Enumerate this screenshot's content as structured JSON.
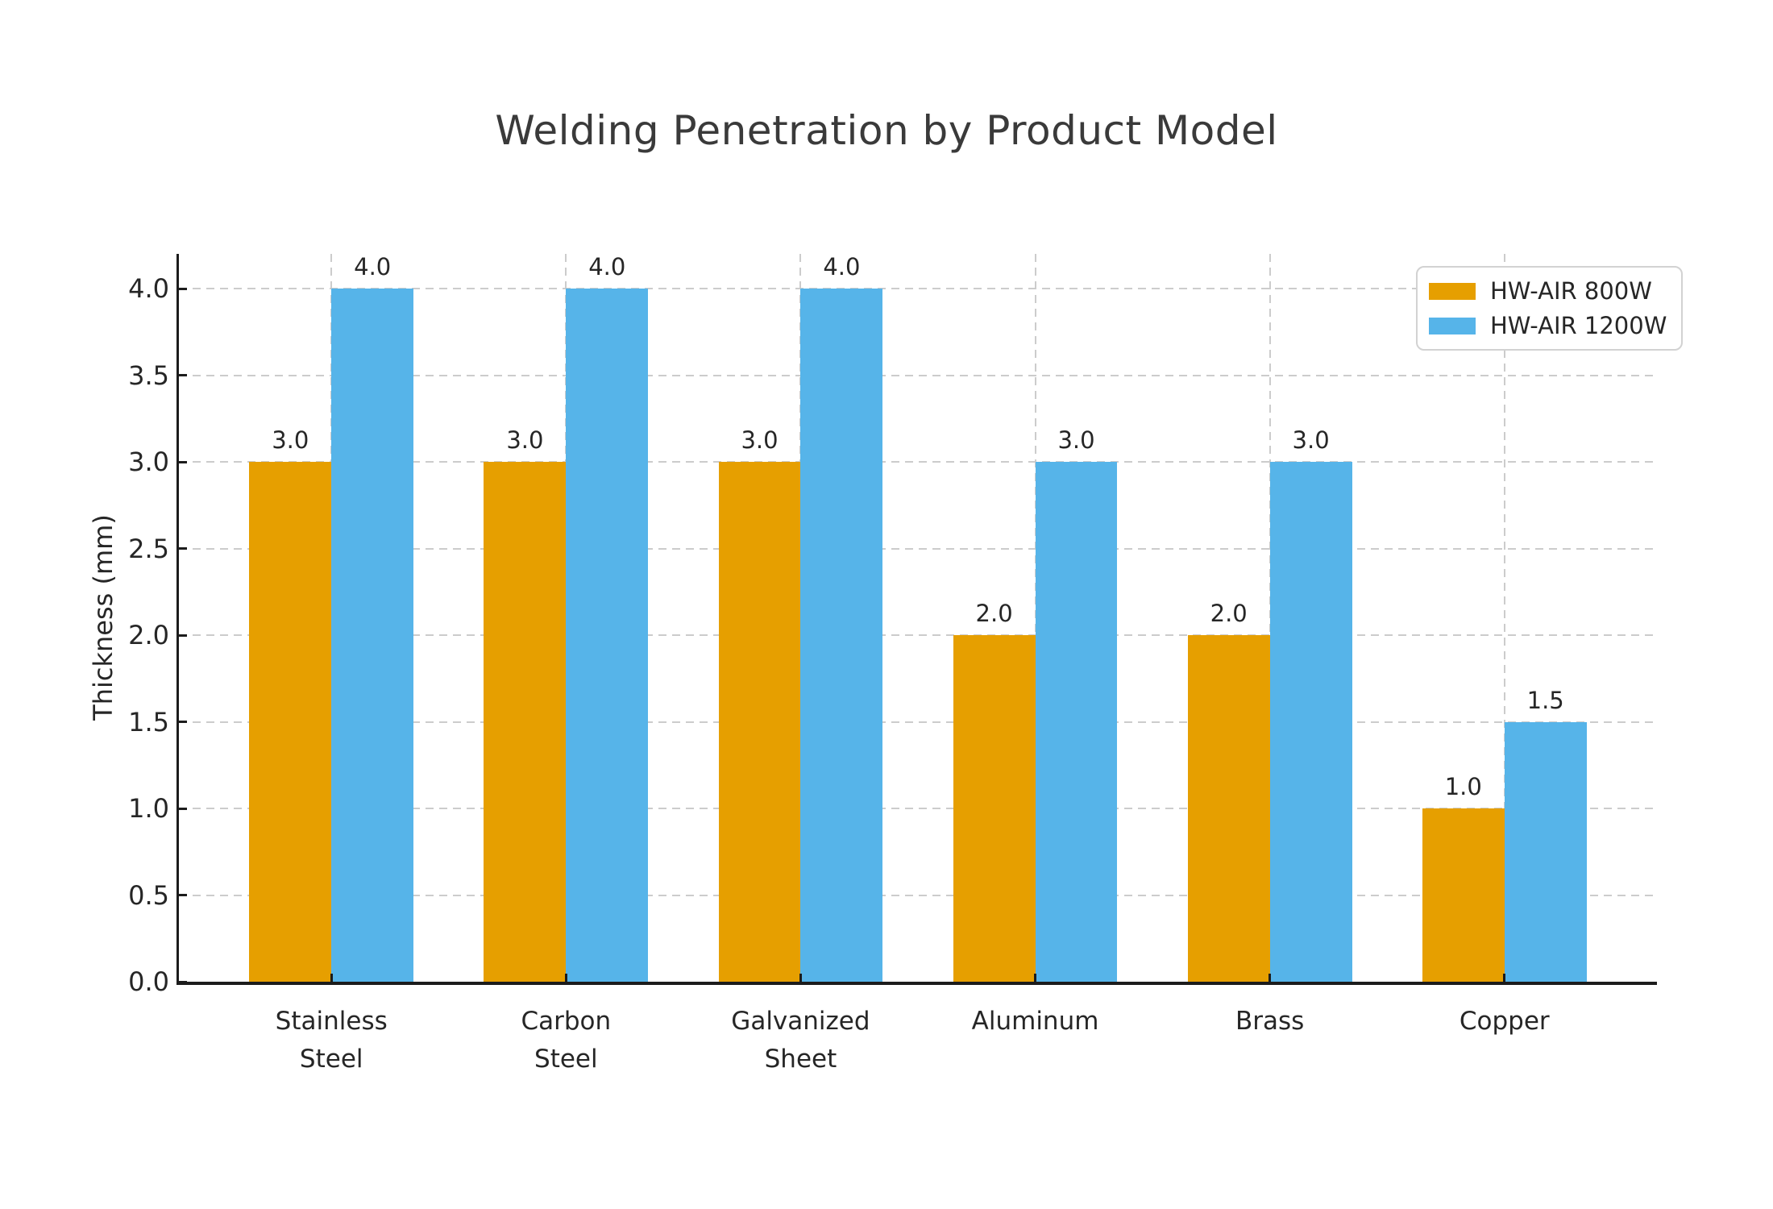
{
  "chart_data": {
    "type": "bar",
    "title": "Welding Penetration by Product Model",
    "ylabel": "Thickness (mm)",
    "xlabel": "",
    "categories": [
      "Stainless\nSteel",
      "Carbon\nSteel",
      "Galvanized\nSheet",
      "Aluminum",
      "Brass",
      "Copper"
    ],
    "series": [
      {
        "name": "HW-AIR 800W",
        "color": "#E69F00",
        "values": [
          3.0,
          3.0,
          3.0,
          2.0,
          2.0,
          1.0
        ]
      },
      {
        "name": "HW-AIR 1200W",
        "color": "#56B4E9",
        "values": [
          4.0,
          4.0,
          4.0,
          3.0,
          3.0,
          1.5
        ]
      }
    ],
    "yticks": [
      0.0,
      0.5,
      1.0,
      1.5,
      2.0,
      2.5,
      3.0,
      3.5,
      4.0
    ],
    "ylim": [
      0,
      4.2
    ],
    "bar_width_data_units": 0.35,
    "grid": "dashed-both-axes",
    "legend_position": "upper-right",
    "value_labels": "above-bars-one-decimal"
  },
  "colors": {
    "background": "#ffffff",
    "axis": "#1c1c1c",
    "grid": "#cccccc",
    "text": "#262626",
    "title": "#3a3a3a"
  }
}
